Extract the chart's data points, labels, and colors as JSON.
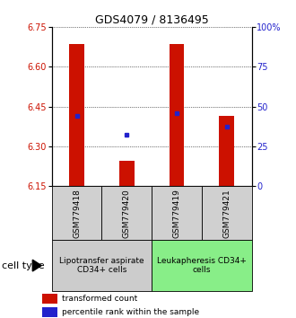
{
  "title": "GDS4079 / 8136495",
  "samples": [
    "GSM779418",
    "GSM779420",
    "GSM779419",
    "GSM779421"
  ],
  "y_min": 6.15,
  "y_max": 6.75,
  "y_ticks_left": [
    6.15,
    6.3,
    6.45,
    6.6,
    6.75
  ],
  "y_ticks_right": [
    0,
    25,
    50,
    75,
    100
  ],
  "bar_tops": [
    6.685,
    6.245,
    6.685,
    6.415
  ],
  "blue_y": [
    6.415,
    6.345,
    6.425,
    6.375
  ],
  "bar_color": "#cc1100",
  "blue_color": "#2222cc",
  "bar_width": 0.3,
  "groups": [
    {
      "label": "Lipotransfer aspirate\nCD34+ cells",
      "indices": [
        0,
        1
      ],
      "color": "#cccccc"
    },
    {
      "label": "Leukapheresis CD34+\ncells",
      "indices": [
        2,
        3
      ],
      "color": "#88ee88"
    }
  ],
  "legend_items": [
    {
      "color": "#cc1100",
      "label": "transformed count"
    },
    {
      "color": "#2222cc",
      "label": "percentile rank within the sample"
    }
  ],
  "title_fontsize": 9,
  "tick_fontsize": 7,
  "sample_fontsize": 6.5,
  "group_fontsize": 6.5,
  "legend_fontsize": 6.5,
  "cell_type_fontsize": 8
}
